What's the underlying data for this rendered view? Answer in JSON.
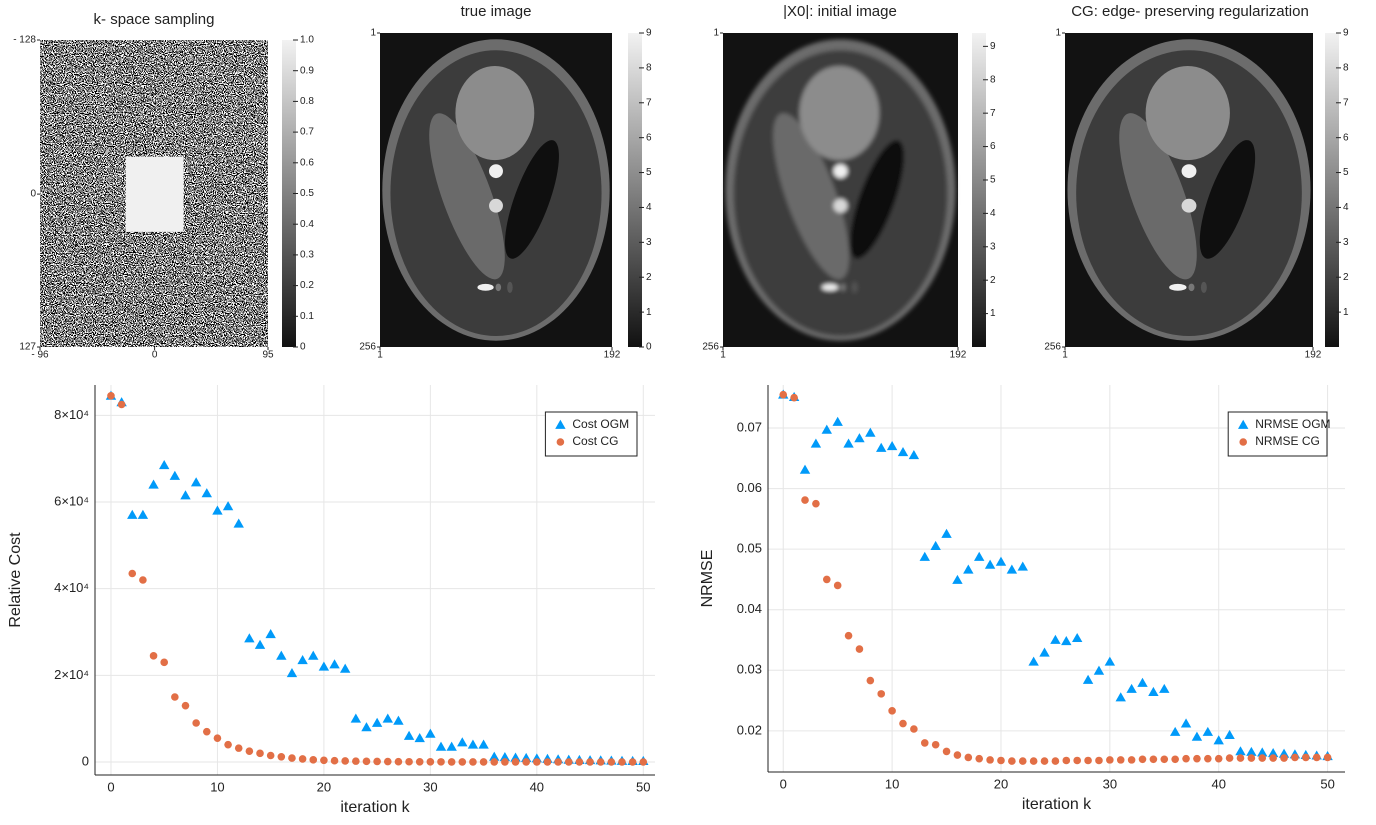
{
  "chart_data": [
    {
      "type": "heatmap",
      "title": "k- space sampling",
      "xlim": [
        -96,
        95
      ],
      "ylim": [
        -128,
        127
      ],
      "yflip": true,
      "xticks": [
        {
          "value": -96,
          "label": "- 96"
        },
        0,
        95
      ],
      "yticks": [
        {
          "value": -128,
          "label": "- 128"
        },
        0,
        127
      ],
      "colorbar": {
        "clim": [
          0,
          1
        ],
        "ticks": [
          0,
          0.1,
          0.2,
          0.3,
          0.4,
          0.5,
          0.6,
          0.7,
          0.8,
          0.9,
          {
            "value": 1,
            "label": "1.0"
          }
        ]
      }
    },
    {
      "type": "heatmap",
      "title": "true image",
      "xlim": [
        1,
        192
      ],
      "ylim": [
        1,
        256
      ],
      "yflip": true,
      "xticks": [
        1,
        192
      ],
      "yticks": [
        1,
        256
      ],
      "colorbar": {
        "clim": [
          0,
          9
        ],
        "ticks": [
          0,
          1,
          2,
          3,
          4,
          5,
          6,
          7,
          8,
          9
        ]
      }
    },
    {
      "type": "heatmap",
      "title": "|X0|: initial image",
      "xlim": [
        1,
        192
      ],
      "ylim": [
        1,
        256
      ],
      "yflip": true,
      "xticks": [
        1,
        192
      ],
      "yticks": [
        1,
        256
      ],
      "colorbar": {
        "clim": [
          0,
          9.4
        ],
        "ticks": [
          1,
          2,
          3,
          4,
          5,
          6,
          7,
          8,
          9
        ]
      }
    },
    {
      "type": "heatmap",
      "title": "CG: edge- preserving regularization",
      "xlim": [
        1,
        192
      ],
      "ylim": [
        1,
        256
      ],
      "yflip": true,
      "xticks": [
        1,
        192
      ],
      "yticks": [
        1,
        256
      ],
      "colorbar": {
        "clim": [
          0,
          9
        ],
        "ticks": [
          1,
          2,
          3,
          4,
          5,
          6,
          7,
          8,
          9
        ]
      }
    },
    {
      "type": "scatter",
      "xlabel": "iteration k",
      "ylabel": "Relative Cost",
      "xlim": [
        -1.5,
        51.1
      ],
      "ylim": [
        -3000,
        87000
      ],
      "xticks": [
        0,
        10,
        20,
        30,
        40,
        50
      ],
      "yticks": [
        0,
        {
          "value": 20000,
          "label": "2×10⁴"
        },
        {
          "value": 40000,
          "label": "4×10⁴"
        },
        {
          "value": 60000,
          "label": "6×10⁴"
        },
        {
          "value": 80000,
          "label": "8×10⁴"
        }
      ],
      "grid": true,
      "legend": "top right",
      "x": [
        0,
        1,
        2,
        3,
        4,
        5,
        6,
        7,
        8,
        9,
        10,
        11,
        12,
        13,
        14,
        15,
        16,
        17,
        18,
        19,
        20,
        21,
        22,
        23,
        24,
        25,
        26,
        27,
        28,
        29,
        30,
        31,
        32,
        33,
        34,
        35,
        36,
        37,
        38,
        39,
        40,
        41,
        42,
        43,
        44,
        45,
        46,
        47,
        48,
        49,
        50
      ],
      "series": [
        {
          "name": "Cost OGM",
          "color": "#009af9",
          "marker": "triangle",
          "values": [
            84500,
            83000,
            57000,
            57000,
            64000,
            68500,
            66000,
            61500,
            64500,
            62000,
            58000,
            59000,
            55000,
            28500,
            27000,
            29500,
            24500,
            20500,
            23500,
            24500,
            22000,
            22500,
            21500,
            10000,
            8000,
            9000,
            10000,
            9500,
            6000,
            5500,
            6500,
            3500,
            3500,
            4500,
            4000,
            4000,
            1200,
            1100,
            1000,
            900,
            800,
            700,
            600,
            500,
            450,
            400,
            350,
            300,
            250,
            200,
            200
          ]
        },
        {
          "name": "Cost CG",
          "color": "#e26f46",
          "marker": "circle",
          "values": [
            84500,
            82500,
            43500,
            42000,
            24500,
            23000,
            15000,
            13000,
            9000,
            7000,
            5500,
            4000,
            3200,
            2500,
            2000,
            1500,
            1200,
            900,
            700,
            500,
            400,
            300,
            250,
            200,
            150,
            120,
            100,
            80,
            60,
            50,
            40,
            30,
            20,
            15,
            10,
            8,
            6,
            5,
            4,
            3,
            2,
            2,
            1,
            1,
            1,
            1,
            0,
            0,
            0,
            0,
            0
          ]
        }
      ]
    },
    {
      "type": "scatter",
      "xlabel": "iteration k",
      "ylabel": "NRMSE",
      "xlim": [
        -1.4,
        51.6
      ],
      "ylim": [
        0.0132,
        0.0771
      ],
      "xticks": [
        0,
        10,
        20,
        30,
        40,
        50
      ],
      "yticks": [
        0.02,
        0.03,
        0.04,
        0.05,
        0.06,
        0.07
      ],
      "grid": true,
      "legend": "top right",
      "x": [
        0,
        1,
        2,
        3,
        4,
        5,
        6,
        7,
        8,
        9,
        10,
        11,
        12,
        13,
        14,
        15,
        16,
        17,
        18,
        19,
        20,
        21,
        22,
        23,
        24,
        25,
        26,
        27,
        28,
        29,
        30,
        31,
        32,
        33,
        34,
        35,
        36,
        37,
        38,
        39,
        40,
        41,
        42,
        43,
        44,
        45,
        46,
        47,
        48,
        49,
        50
      ],
      "series": [
        {
          "name": "NRMSE OGM",
          "color": "#009af9",
          "marker": "triangle",
          "values": [
            0.0755,
            0.0751,
            0.0631,
            0.0674,
            0.0697,
            0.071,
            0.0674,
            0.0683,
            0.0692,
            0.0667,
            0.067,
            0.066,
            0.0655,
            0.0487,
            0.0505,
            0.0525,
            0.0449,
            0.0466,
            0.0487,
            0.0474,
            0.0479,
            0.0466,
            0.0471,
            0.0314,
            0.0329,
            0.035,
            0.0348,
            0.0353,
            0.0284,
            0.0299,
            0.0314,
            0.0255,
            0.0269,
            0.0279,
            0.0264,
            0.0269,
            0.0198,
            0.0212,
            0.019,
            0.0198,
            0.0184,
            0.0193,
            0.0166,
            0.0165,
            0.0164,
            0.0163,
            0.0162,
            0.0161,
            0.016,
            0.0159,
            0.0158
          ]
        },
        {
          "name": "NRMSE CG",
          "color": "#e26f46",
          "marker": "circle",
          "values": [
            0.0755,
            0.075,
            0.0581,
            0.0575,
            0.045,
            0.044,
            0.0357,
            0.0335,
            0.0283,
            0.0261,
            0.0233,
            0.0212,
            0.0203,
            0.018,
            0.0177,
            0.0166,
            0.016,
            0.0156,
            0.0154,
            0.0152,
            0.0151,
            0.015,
            0.015,
            0.015,
            0.015,
            0.015,
            0.0151,
            0.0151,
            0.0151,
            0.0151,
            0.0152,
            0.0152,
            0.0152,
            0.0153,
            0.0153,
            0.0153,
            0.0153,
            0.0154,
            0.0154,
            0.0154,
            0.0154,
            0.0155,
            0.0155,
            0.0155,
            0.0155,
            0.0155,
            0.0155,
            0.0156,
            0.0156,
            0.0156,
            0.0156
          ]
        }
      ]
    }
  ]
}
